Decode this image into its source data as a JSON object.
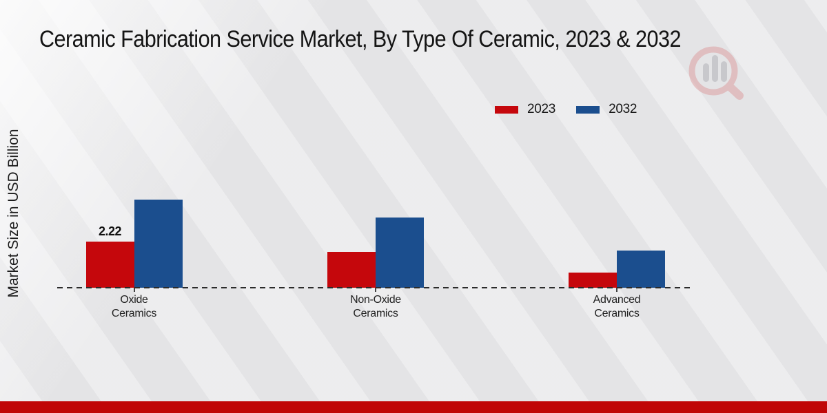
{
  "header": {
    "title": "Ceramic Fabrication Service Market, By Type Of Ceramic, 2023 & 2032"
  },
  "chart_data": {
    "type": "bar",
    "title": "Ceramic Fabrication Service Market, By Type Of Ceramic, 2023 & 2032",
    "xlabel": "",
    "ylabel": "Market Size in USD Billion",
    "categories": [
      "Oxide Ceramics",
      "Non-Oxide Ceramics",
      "Advanced Ceramics"
    ],
    "category_lines": [
      [
        "Oxide",
        "Ceramics"
      ],
      [
        "Non-Oxide",
        "Ceramics"
      ],
      [
        "Advanced",
        "Ceramics"
      ]
    ],
    "series": [
      {
        "name": "2023",
        "color": "#c5070c",
        "values": [
          2.22,
          1.73,
          0.75
        ],
        "labels": [
          "2.22",
          "",
          ""
        ]
      },
      {
        "name": "2032",
        "color": "#1b4e8e",
        "values": [
          4.28,
          3.39,
          1.81
        ],
        "labels": [
          "",
          "",
          ""
        ]
      }
    ],
    "ylim": [
      0,
      4.8
    ],
    "grid": false,
    "legend_position": "top-right",
    "baseline_style": "dashed",
    "y_axis_ticks_visible": false
  },
  "legend": {
    "items": [
      {
        "label": "2023",
        "color": "#c5070c"
      },
      {
        "label": "2032",
        "color": "#1b4e8e"
      }
    ]
  },
  "watermark": {
    "icon": "magnifier-bar-chart-logo"
  },
  "footer": {
    "accent_color": "#c00607"
  }
}
